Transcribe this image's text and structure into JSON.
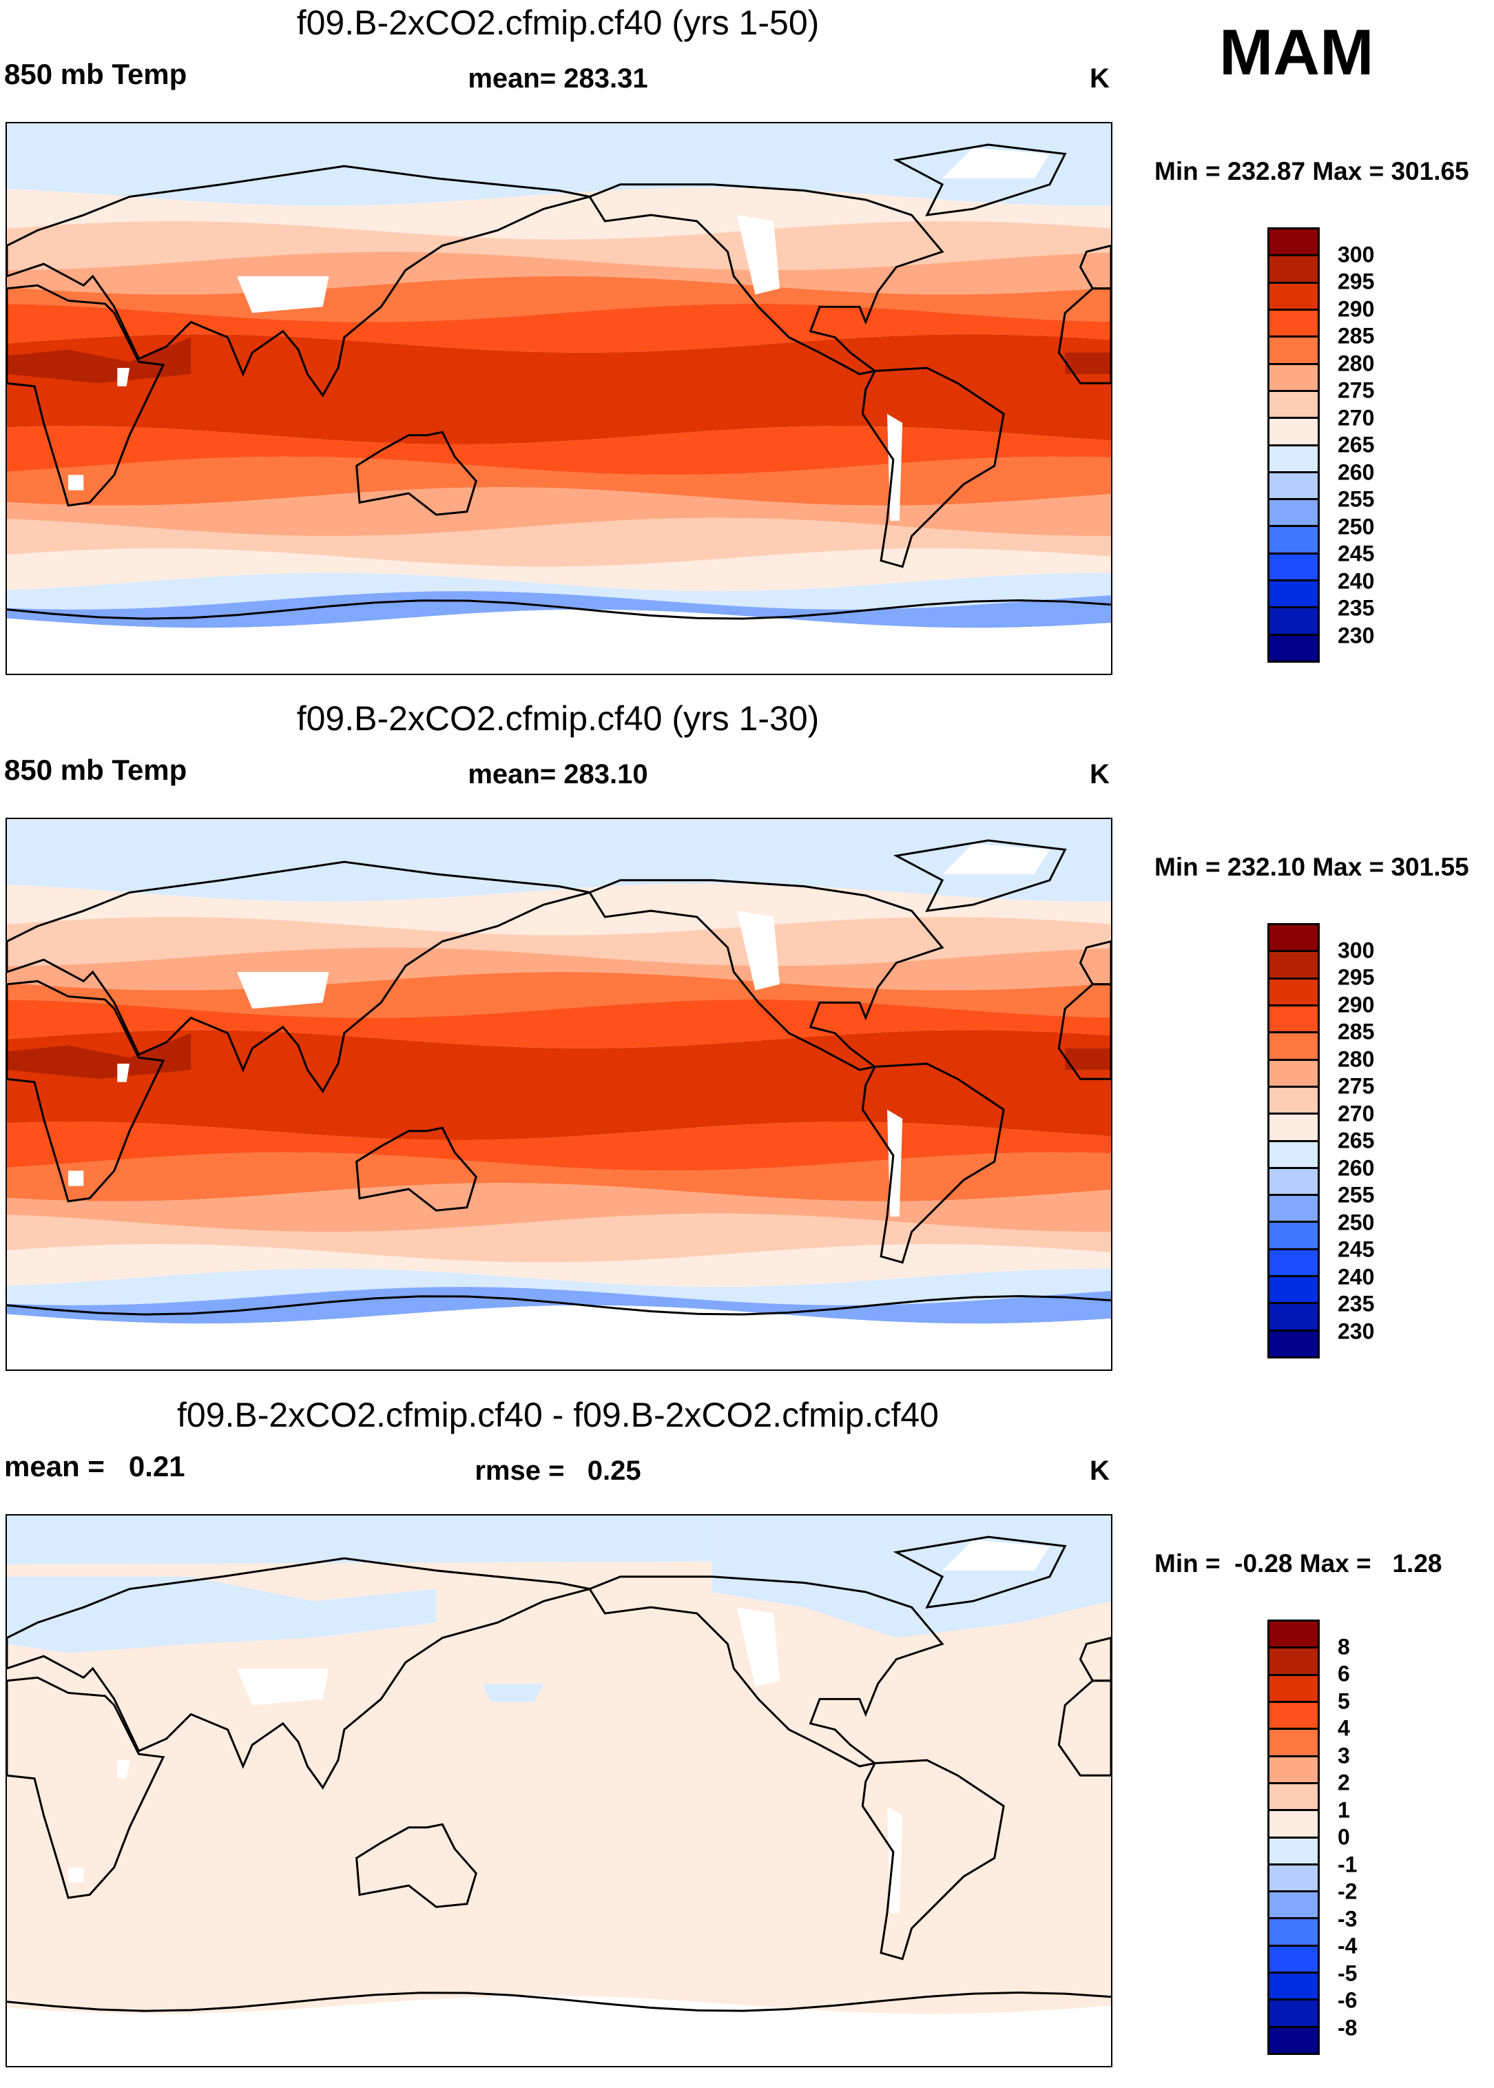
{
  "season": "MAM",
  "colors": [
    "#8b0000",
    "#b52200",
    "#e03500",
    "#ff5119",
    "#ff7840",
    "#ffaa84",
    "#ffcdb4",
    "#ffece0",
    "#d8ebff",
    "#b3ceff",
    "#80a8ff",
    "#4078ff",
    "#1a4dff",
    "#002ee0",
    "#0018b5",
    "#00008b"
  ],
  "chart_data": [
    {
      "type": "heatmap",
      "title": "f09.B-2xCO2.cfmip.cf40 (yrs 1-50)",
      "left_label": "850 mb Temp",
      "center_label": "mean= 283.31",
      "units": "K",
      "minmax": "Min = 232.87 Max = 301.65",
      "levels": [
        "300",
        "295",
        "290",
        "285",
        "280",
        "275",
        "270",
        "265",
        "260",
        "255",
        "250",
        "245",
        "240",
        "235",
        "230"
      ],
      "zonal_bands": [
        [
          90,
          66,
          8
        ],
        [
          66,
          55,
          7
        ],
        [
          55,
          45,
          6
        ],
        [
          45,
          37,
          5
        ],
        [
          37,
          28,
          4
        ],
        [
          28,
          18,
          3
        ],
        [
          18,
          -12,
          2
        ],
        [
          -12,
          -22,
          3
        ],
        [
          -22,
          -32,
          4
        ],
        [
          -32,
          -42,
          5
        ],
        [
          -42,
          -52,
          6
        ],
        [
          -52,
          -60,
          7
        ],
        [
          -60,
          -66,
          8
        ],
        [
          -66,
          -72,
          10
        ],
        [
          -72,
          -90,
          -1
        ]
      ]
    },
    {
      "type": "heatmap",
      "title": "f09.B-2xCO2.cfmip.cf40 (yrs 1-30)",
      "left_label": "850 mb Temp",
      "center_label": "mean= 283.10",
      "units": "K",
      "minmax": "Min = 232.10 Max = 301.55",
      "levels": [
        "300",
        "295",
        "290",
        "285",
        "280",
        "275",
        "270",
        "265",
        "260",
        "255",
        "250",
        "245",
        "240",
        "235",
        "230"
      ],
      "zonal_bands": [
        [
          90,
          66,
          8
        ],
        [
          66,
          55,
          7
        ],
        [
          55,
          45,
          6
        ],
        [
          45,
          37,
          5
        ],
        [
          37,
          28,
          4
        ],
        [
          28,
          18,
          3
        ],
        [
          18,
          -12,
          2
        ],
        [
          -12,
          -22,
          3
        ],
        [
          -22,
          -32,
          4
        ],
        [
          -32,
          -42,
          5
        ],
        [
          -42,
          -52,
          6
        ],
        [
          -52,
          -60,
          7
        ],
        [
          -60,
          -66,
          8
        ],
        [
          -66,
          -72,
          10
        ],
        [
          -72,
          -90,
          -1
        ]
      ]
    },
    {
      "type": "heatmap",
      "title": "f09.B-2xCO2.cfmip.cf40 - f09.B-2xCO2.cfmip.cf40",
      "left_label": "mean =   0.21",
      "center_label": "rmse =   0.25",
      "units": "K",
      "minmax": "Min =  -0.28 Max =   1.28",
      "levels": [
        "8",
        "6",
        "5",
        "4",
        "3",
        "2",
        "1",
        "0",
        "-1",
        "-2",
        "-3",
        "-4",
        "-5",
        "-6",
        "-8"
      ],
      "zonal_bands": [
        [
          90,
          -70,
          7
        ],
        [
          -70,
          -90,
          -1
        ]
      ]
    }
  ]
}
